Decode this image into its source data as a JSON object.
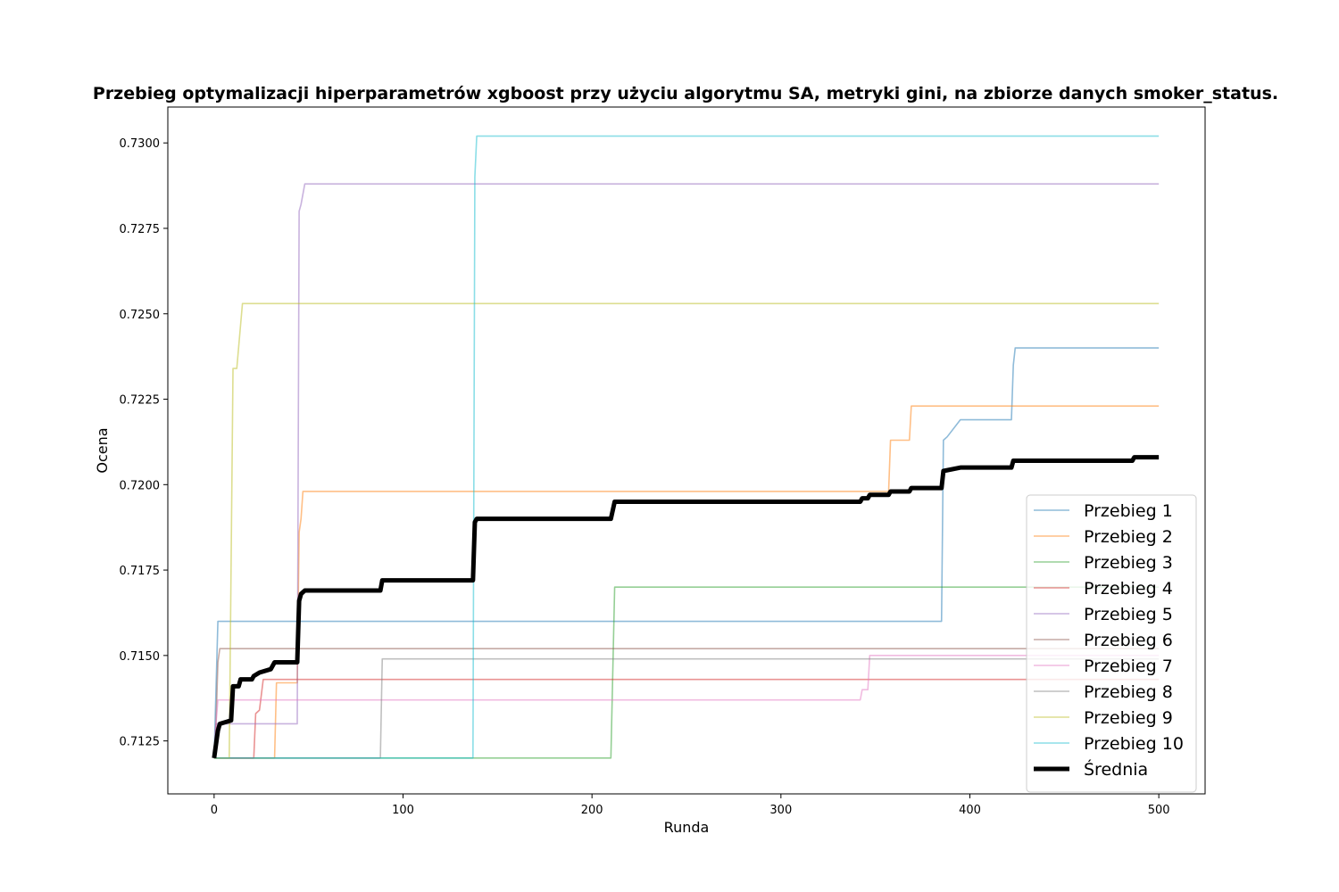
{
  "chart_data": {
    "type": "line",
    "title": "Przebieg optymalizacji hiperparametrów xgboost przy użyciu algorytmu SA, metryki gini, na zbiorze danych smoker_status.",
    "xlabel": "Runda",
    "ylabel": "Ocena",
    "xlim": [
      -24.5,
      524.5
    ],
    "ylim": [
      0.71095,
      0.73105
    ],
    "xticks": [
      0,
      100,
      200,
      300,
      400,
      500
    ],
    "xtick_labels": [
      "0",
      "100",
      "200",
      "300",
      "400",
      "500"
    ],
    "yticks": [
      0.7125,
      0.715,
      0.7175,
      0.72,
      0.7225,
      0.725,
      0.7275,
      0.73
    ],
    "ytick_labels": [
      "0.7125",
      "0.7150",
      "0.7175",
      "0.7200",
      "0.7225",
      "0.7250",
      "0.7275",
      "0.7300"
    ],
    "grid": false,
    "legend_position": "lower-right",
    "series": [
      {
        "name": "Przebieg 1",
        "color": "#1f77b4",
        "step": true,
        "points": [
          [
            0,
            0.712
          ],
          [
            2,
            0.716
          ],
          [
            385,
            0.716
          ],
          [
            386,
            0.7213
          ],
          [
            388,
            0.7214
          ],
          [
            395,
            0.7219
          ],
          [
            422,
            0.7219
          ],
          [
            423,
            0.7235
          ],
          [
            424,
            0.724
          ],
          [
            500,
            0.724
          ]
        ]
      },
      {
        "name": "Przebieg 2",
        "color": "#ff7f0e",
        "step": true,
        "points": [
          [
            0,
            0.712
          ],
          [
            32,
            0.712
          ],
          [
            33,
            0.7142
          ],
          [
            44,
            0.7142
          ],
          [
            45,
            0.7186
          ],
          [
            46,
            0.719
          ],
          [
            47,
            0.7198
          ],
          [
            357,
            0.7198
          ],
          [
            358,
            0.7213
          ],
          [
            368,
            0.7213
          ],
          [
            369,
            0.7223
          ],
          [
            500,
            0.7223
          ]
        ]
      },
      {
        "name": "Przebieg 3",
        "color": "#2ca02c",
        "step": true,
        "points": [
          [
            0,
            0.712
          ],
          [
            210,
            0.712
          ],
          [
            212,
            0.717
          ],
          [
            500,
            0.717
          ]
        ]
      },
      {
        "name": "Przebieg 4",
        "color": "#d62728",
        "step": true,
        "points": [
          [
            0,
            0.712
          ],
          [
            21,
            0.712
          ],
          [
            22,
            0.7133
          ],
          [
            24,
            0.7134
          ],
          [
            26,
            0.7143
          ],
          [
            500,
            0.7143
          ]
        ]
      },
      {
        "name": "Przebieg 5",
        "color": "#9467bd",
        "step": true,
        "points": [
          [
            0,
            0.712
          ],
          [
            1,
            0.713
          ],
          [
            44,
            0.713
          ],
          [
            45,
            0.728
          ],
          [
            46,
            0.7282
          ],
          [
            48,
            0.7288
          ],
          [
            500,
            0.7288
          ]
        ]
      },
      {
        "name": "Przebieg 6",
        "color": "#8c564b",
        "step": true,
        "points": [
          [
            0,
            0.712
          ],
          [
            1,
            0.713
          ],
          [
            2,
            0.7148
          ],
          [
            3,
            0.7152
          ],
          [
            500,
            0.7152
          ]
        ]
      },
      {
        "name": "Przebieg 7",
        "color": "#e377c2",
        "step": true,
        "points": [
          [
            0,
            0.712
          ],
          [
            1,
            0.713
          ],
          [
            2,
            0.7137
          ],
          [
            342,
            0.7137
          ],
          [
            343,
            0.714
          ],
          [
            346,
            0.714
          ],
          [
            347,
            0.715
          ],
          [
            500,
            0.715
          ]
        ]
      },
      {
        "name": "Przebieg 8",
        "color": "#7f7f7f",
        "step": true,
        "points": [
          [
            0,
            0.712
          ],
          [
            88,
            0.712
          ],
          [
            89,
            0.7149
          ],
          [
            500,
            0.7149
          ]
        ]
      },
      {
        "name": "Przebieg 9",
        "color": "#bcbd22",
        "step": true,
        "points": [
          [
            0,
            0.712
          ],
          [
            8,
            0.712
          ],
          [
            10,
            0.7234
          ],
          [
            12,
            0.7234
          ],
          [
            15,
            0.7253
          ],
          [
            500,
            0.7253
          ]
        ]
      },
      {
        "name": "Przebieg 10",
        "color": "#17becf",
        "step": true,
        "points": [
          [
            0,
            0.712
          ],
          [
            137,
            0.712
          ],
          [
            138,
            0.729
          ],
          [
            139,
            0.7302
          ],
          [
            500,
            0.7302
          ]
        ]
      },
      {
        "name": "Średnia",
        "color": "#000000",
        "step": true,
        "points": [
          [
            0,
            0.712
          ],
          [
            1,
            0.7124
          ],
          [
            2,
            0.7128
          ],
          [
            3,
            0.713
          ],
          [
            9,
            0.7131
          ],
          [
            10,
            0.7141
          ],
          [
            13,
            0.7141
          ],
          [
            14,
            0.7143
          ],
          [
            20,
            0.7143
          ],
          [
            21,
            0.7144
          ],
          [
            24,
            0.7145
          ],
          [
            30,
            0.7146
          ],
          [
            32,
            0.7148
          ],
          [
            44,
            0.7148
          ],
          [
            45,
            0.7166
          ],
          [
            46,
            0.7168
          ],
          [
            48,
            0.7169
          ],
          [
            88,
            0.7169
          ],
          [
            89,
            0.7172
          ],
          [
            137,
            0.7172
          ],
          [
            138,
            0.7189
          ],
          [
            139,
            0.719
          ],
          [
            210,
            0.719
          ],
          [
            212,
            0.7195
          ],
          [
            342,
            0.7195
          ],
          [
            343,
            0.7196
          ],
          [
            346,
            0.7196
          ],
          [
            347,
            0.7197
          ],
          [
            357,
            0.7197
          ],
          [
            358,
            0.7198
          ],
          [
            368,
            0.7198
          ],
          [
            369,
            0.7199
          ],
          [
            385,
            0.7199
          ],
          [
            386,
            0.7204
          ],
          [
            395,
            0.7205
          ],
          [
            422,
            0.7205
          ],
          [
            423,
            0.7207
          ],
          [
            486,
            0.7207
          ],
          [
            487,
            0.7208
          ],
          [
            500,
            0.7208
          ]
        ]
      }
    ]
  }
}
